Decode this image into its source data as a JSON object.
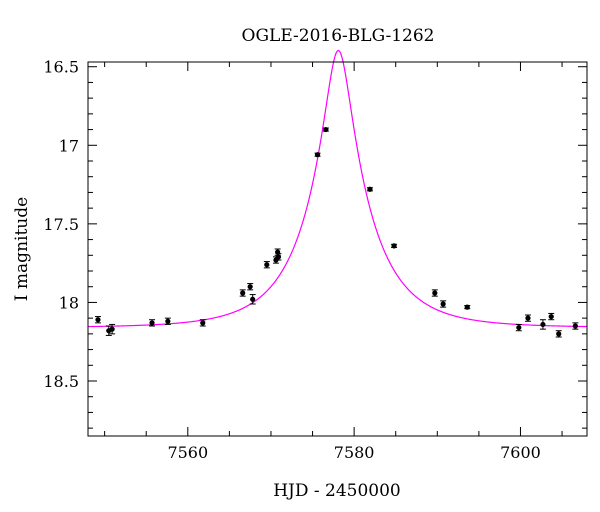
{
  "chart_data": {
    "type": "scatter",
    "title": "OGLE-2016-BLG-1262",
    "xlabel": "HJD - 2450000",
    "ylabel": "I magnitude",
    "xlim": [
      7548,
      7608
    ],
    "ylim": [
      18.85,
      16.47
    ],
    "y_inverted": true,
    "grid": false,
    "x_ticks": [
      7560,
      7580,
      7600
    ],
    "y_ticks": [
      "16.5",
      "17",
      "17.5",
      "18",
      "18.5"
    ],
    "colors": {
      "points": "#000000",
      "model": "#ff00ff"
    },
    "series": [
      {
        "kind": "points",
        "x": [
          7549.2,
          7550.5,
          7550.9,
          7555.7,
          7557.6,
          7561.8,
          7566.6,
          7567.5,
          7567.8,
          7569.5,
          7570.6,
          7570.8,
          7570.9,
          7575.6,
          7576.6,
          7581.9,
          7584.8,
          7589.7,
          7590.7,
          7593.6,
          7599.8,
          7600.9,
          7602.7,
          7603.7,
          7604.6,
          7606.6
        ],
        "y": [
          18.11,
          18.18,
          18.17,
          18.13,
          18.12,
          18.13,
          17.94,
          17.9,
          17.98,
          17.76,
          17.73,
          17.68,
          17.71,
          17.06,
          16.9,
          17.28,
          17.64,
          17.94,
          18.01,
          18.03,
          18.16,
          18.1,
          18.14,
          18.09,
          18.2,
          18.15
        ],
        "yerr": [
          0.02,
          0.03,
          0.03,
          0.02,
          0.02,
          0.02,
          0.02,
          0.02,
          0.03,
          0.02,
          0.02,
          0.02,
          0.02,
          0.01,
          0.01,
          0.01,
          0.01,
          0.02,
          0.02,
          0.01,
          0.02,
          0.02,
          0.03,
          0.02,
          0.02,
          0.02
        ]
      },
      {
        "kind": "model",
        "baseline_mag": 18.16,
        "t0": 7578.1,
        "tE": 7.4,
        "u0": 0.2
      }
    ]
  }
}
